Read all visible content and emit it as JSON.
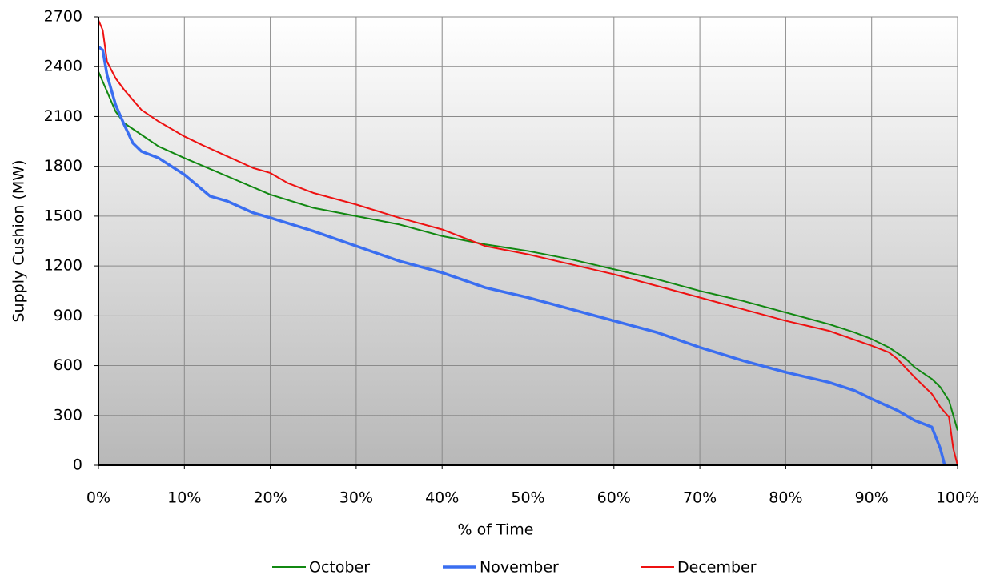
{
  "chart_data": {
    "type": "line",
    "xlabel": "% of Time",
    "ylabel": "Supply Cushion (MW)",
    "xlim": [
      0,
      100
    ],
    "ylim": [
      0,
      2700
    ],
    "xticks": [
      {
        "value": 0,
        "label": "0%"
      },
      {
        "value": 10,
        "label": "10%"
      },
      {
        "value": 20,
        "label": "20%"
      },
      {
        "value": 30,
        "label": "30%"
      },
      {
        "value": 40,
        "label": "40%"
      },
      {
        "value": 50,
        "label": "50%"
      },
      {
        "value": 60,
        "label": "60%"
      },
      {
        "value": 70,
        "label": "70%"
      },
      {
        "value": 80,
        "label": "80%"
      },
      {
        "value": 90,
        "label": "90%"
      },
      {
        "value": 100,
        "label": "100%"
      }
    ],
    "yticks": [
      0,
      300,
      600,
      900,
      1200,
      1500,
      1800,
      2100,
      2400,
      2700
    ],
    "grid": true,
    "legend": "bottom",
    "series": [
      {
        "name": "October",
        "color": "#118811",
        "x": [
          0,
          1,
          2,
          3,
          5,
          7,
          10,
          15,
          20,
          25,
          30,
          35,
          40,
          45,
          50,
          55,
          60,
          65,
          70,
          75,
          80,
          85,
          88,
          90,
          92,
          94,
          95,
          97,
          98,
          99,
          100
        ],
        "values": [
          2370,
          2250,
          2130,
          2060,
          1990,
          1920,
          1850,
          1740,
          1630,
          1550,
          1500,
          1450,
          1380,
          1330,
          1290,
          1240,
          1180,
          1120,
          1050,
          990,
          920,
          850,
          800,
          760,
          710,
          640,
          590,
          520,
          470,
          390,
          210
        ]
      },
      {
        "name": "November",
        "color": "#3a6ef0",
        "x": [
          0,
          0.5,
          1,
          2,
          3,
          4,
          5,
          7,
          10,
          13,
          15,
          18,
          20,
          25,
          30,
          35,
          40,
          45,
          50,
          55,
          60,
          65,
          70,
          75,
          80,
          85,
          88,
          90,
          93,
          95,
          97,
          98,
          98.5
        ],
        "values": [
          2520,
          2500,
          2350,
          2170,
          2050,
          1940,
          1890,
          1850,
          1750,
          1620,
          1590,
          1520,
          1490,
          1410,
          1320,
          1230,
          1160,
          1070,
          1010,
          940,
          870,
          800,
          710,
          630,
          560,
          500,
          450,
          400,
          330,
          270,
          230,
          100,
          0
        ]
      },
      {
        "name": "December",
        "color": "#ee1111",
        "x": [
          0,
          0.5,
          1,
          2,
          3,
          4,
          5,
          7,
          10,
          12,
          15,
          18,
          20,
          22,
          25,
          30,
          35,
          40,
          45,
          50,
          55,
          60,
          65,
          70,
          75,
          80,
          85,
          90,
          92,
          93,
          95,
          97,
          98,
          99,
          99.5,
          100
        ],
        "values": [
          2680,
          2620,
          2430,
          2330,
          2260,
          2200,
          2140,
          2070,
          1980,
          1930,
          1860,
          1790,
          1760,
          1700,
          1640,
          1570,
          1490,
          1420,
          1320,
          1270,
          1210,
          1150,
          1080,
          1010,
          940,
          870,
          810,
          720,
          680,
          640,
          530,
          430,
          350,
          290,
          100,
          0
        ]
      }
    ]
  }
}
